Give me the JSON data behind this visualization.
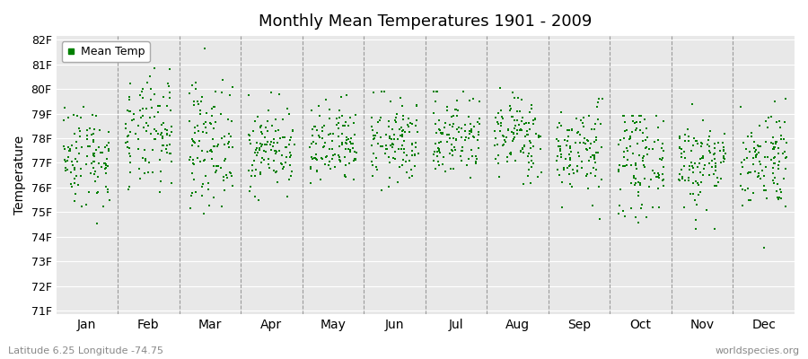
{
  "title": "Monthly Mean Temperatures 1901 - 2009",
  "ylabel": "Temperature",
  "bottom_left_label": "Latitude 6.25 Longitude -74.75",
  "bottom_right_label": "worldspecies.org",
  "marker_color": "#008000",
  "plot_bg_color": "#e8e8e8",
  "fig_bg_color": "#ffffff",
  "grid_color": "#ffffff",
  "vline_color": "#888888",
  "ylim_min": 71,
  "ylim_max": 82,
  "months": [
    "Jan",
    "Feb",
    "Mar",
    "Apr",
    "May",
    "Jun",
    "Jul",
    "Aug",
    "Sep",
    "Oct",
    "Nov",
    "Dec"
  ],
  "n_years": 109,
  "seed": 42,
  "monthly_means": [
    77.3,
    78.1,
    77.8,
    77.6,
    77.6,
    77.8,
    78.1,
    78.1,
    77.5,
    77.1,
    77.0,
    77.2
  ],
  "monthly_stds": [
    1.05,
    1.15,
    1.25,
    0.85,
    0.85,
    0.85,
    0.85,
    0.85,
    0.95,
    1.05,
    0.95,
    1.05
  ],
  "monthly_mins": [
    71.8,
    74.0,
    73.8,
    75.5,
    75.5,
    74.5,
    74.5,
    74.5,
    74.7,
    74.0,
    74.3,
    72.0
  ],
  "monthly_maxs": [
    80.0,
    81.2,
    81.7,
    80.3,
    80.2,
    79.9,
    79.9,
    80.6,
    79.6,
    78.9,
    79.4,
    79.6
  ],
  "marker_size": 4,
  "title_fontsize": 13,
  "axis_fontsize": 9,
  "label_fontsize": 8
}
